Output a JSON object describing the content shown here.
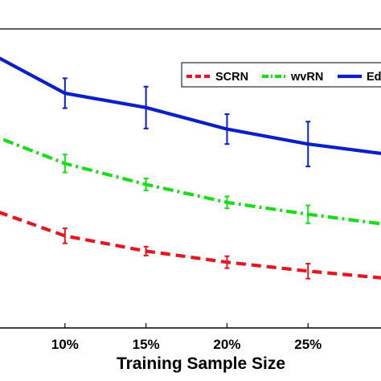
{
  "chart_data": {
    "type": "line",
    "title": "",
    "xlabel": "Training Sample Size",
    "ylabel": "",
    "x_ticks": [
      "10%",
      "15%",
      "20%",
      "25%"
    ],
    "x": [
      5,
      10,
      15,
      20,
      25,
      30
    ],
    "xlim": [
      5,
      29.5
    ],
    "ylim": [
      0,
      1
    ],
    "grid": false,
    "legend_position": "top-right",
    "series": [
      {
        "name": "SCRN",
        "color": "#e8141e",
        "style": "dashed",
        "values": [
          0.405,
          0.308,
          0.257,
          0.22,
          0.19,
          0.165
        ],
        "errors": [
          null,
          0.025,
          0.015,
          0.02,
          0.025,
          null
        ]
      },
      {
        "name": "wvRN",
        "color": "#18dd18",
        "style": "dash-dot",
        "values": [
          0.655,
          0.55,
          0.48,
          0.42,
          0.38,
          0.345
        ],
        "errors": [
          null,
          0.03,
          0.02,
          0.02,
          0.03,
          null
        ]
      },
      {
        "name": "Ed",
        "color": "#0b1fc8",
        "style": "solid",
        "values": [
          0.93,
          0.785,
          0.737,
          0.665,
          0.615,
          0.58
        ],
        "errors": [
          null,
          0.05,
          0.07,
          0.05,
          0.075,
          null
        ]
      }
    ]
  }
}
